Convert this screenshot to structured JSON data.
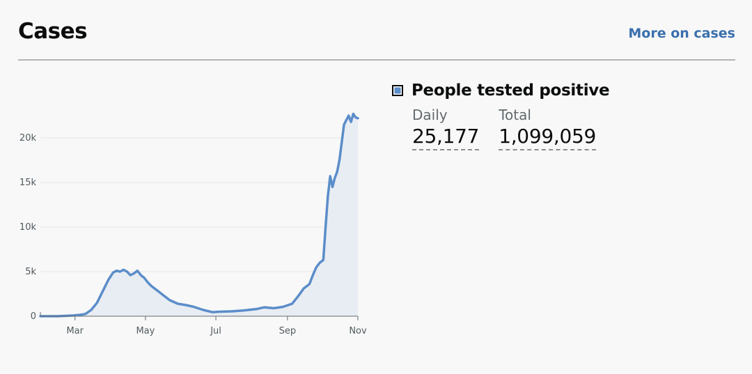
{
  "header": {
    "title": "Cases",
    "more_link": "More on cases"
  },
  "legend": {
    "title": "People tested positive",
    "daily_label": "Daily",
    "daily_value": "25,177",
    "total_label": "Total",
    "total_value": "1,099,059"
  },
  "colors": {
    "line": "#5b8dc9",
    "area": "#e8edf3",
    "link": "#3a6fad",
    "divider": "#b1b4b6"
  },
  "chart_data": {
    "type": "area",
    "title": "",
    "xlabel": "",
    "ylabel": "",
    "ylim": [
      0,
      20000
    ],
    "y_ticks": [
      0,
      5000,
      10000,
      15000,
      20000
    ],
    "y_tick_labels": [
      "0",
      "5k",
      "10k",
      "15k",
      "20k"
    ],
    "x_ticks": [
      "2020-03-01",
      "2020-05-01",
      "2020-07-01",
      "2020-09-01",
      "2020-11-01"
    ],
    "x_tick_labels": [
      "Mar",
      "May",
      "Jul",
      "Sep",
      "Nov"
    ],
    "grid": true,
    "series": [
      {
        "name": "People tested positive",
        "x": [
          "2020-01-31",
          "2020-02-15",
          "2020-02-28",
          "2020-03-05",
          "2020-03-10",
          "2020-03-15",
          "2020-03-20",
          "2020-03-25",
          "2020-03-30",
          "2020-04-03",
          "2020-04-06",
          "2020-04-09",
          "2020-04-12",
          "2020-04-15",
          "2020-04-18",
          "2020-04-21",
          "2020-04-24",
          "2020-04-27",
          "2020-04-30",
          "2020-05-03",
          "2020-05-06",
          "2020-05-09",
          "2020-05-15",
          "2020-05-22",
          "2020-05-29",
          "2020-06-05",
          "2020-06-12",
          "2020-06-20",
          "2020-06-28",
          "2020-07-03",
          "2020-07-15",
          "2020-07-25",
          "2020-08-05",
          "2020-08-12",
          "2020-08-20",
          "2020-08-28",
          "2020-09-05",
          "2020-09-10",
          "2020-09-15",
          "2020-09-20",
          "2020-09-23",
          "2020-09-26",
          "2020-09-29",
          "2020-10-02",
          "2020-10-04",
          "2020-10-06",
          "2020-10-08",
          "2020-10-10",
          "2020-10-12",
          "2020-10-14",
          "2020-10-16",
          "2020-10-18",
          "2020-10-20",
          "2020-10-22",
          "2020-10-24",
          "2020-10-26",
          "2020-10-28",
          "2020-10-30",
          "2020-11-01"
        ],
        "values": [
          0,
          0,
          80,
          150,
          250,
          700,
          1500,
          2800,
          4100,
          4900,
          5100,
          5000,
          5200,
          5000,
          4600,
          4800,
          5100,
          4600,
          4300,
          3800,
          3400,
          3100,
          2500,
          1800,
          1400,
          1250,
          1050,
          700,
          450,
          500,
          550,
          650,
          800,
          1000,
          900,
          1050,
          1400,
          2200,
          3100,
          3600,
          4600,
          5500,
          6000,
          6300,
          10000,
          13500,
          15700,
          14500,
          15500,
          16200,
          17500,
          19500,
          21500,
          22000,
          22500,
          21800,
          22700,
          22300,
          22200
        ]
      }
    ]
  }
}
